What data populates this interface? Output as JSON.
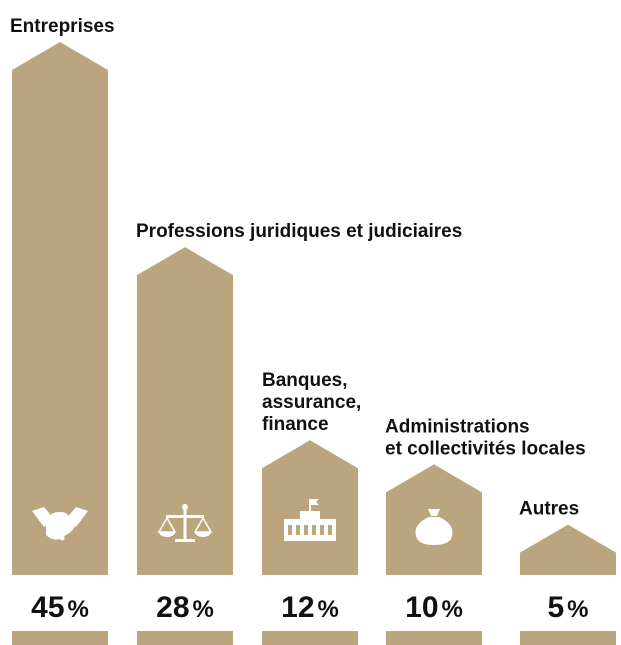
{
  "chart_data": {
    "type": "bar",
    "categories": [
      "Entreprises",
      "Professions juridiques et judiciaires",
      "Banques, assurance, finance",
      "Administrations et collectivités locales",
      "Autres"
    ],
    "category_lines": [
      [
        "Entreprises"
      ],
      [
        "Professions juridiques et judiciaires"
      ],
      [
        "Banques,",
        "assurance,",
        "finance"
      ],
      [
        "Administrations",
        "et collectivités locales"
      ],
      [
        "Autres"
      ]
    ],
    "values": [
      45,
      28,
      12,
      10,
      5
    ],
    "value_labels": [
      "45",
      "28",
      "12",
      "10",
      "5"
    ],
    "unit": "%",
    "icons": [
      "handshake-icon",
      "scales-of-justice-icon",
      "bank-building-icon",
      "money-bag-icon",
      ""
    ],
    "ylim": [
      0,
      45
    ],
    "grid": false,
    "legend": "none"
  },
  "colors": {
    "bar": "#bba57e",
    "icon": "#ffffff",
    "text": "#111111",
    "background": "#ffffff"
  }
}
